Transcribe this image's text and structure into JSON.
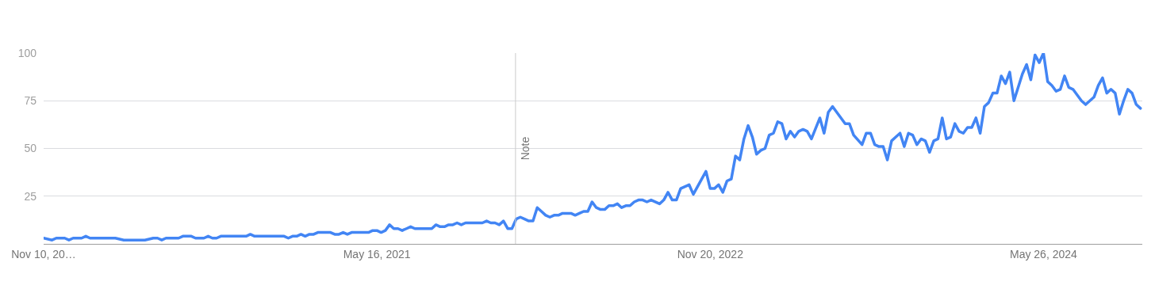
{
  "chart_data": {
    "type": "line",
    "x": [
      "2019-11-10",
      "2019-11-24",
      "2019-12-01",
      "2019-12-15",
      "2019-12-22",
      "2019-12-29",
      "2020-01-12",
      "2020-01-19",
      "2020-01-26",
      "2020-03-08",
      "2020-03-22",
      "2020-04-26",
      "2020-05-10",
      "2020-05-17",
      "2020-05-24",
      "2020-05-31",
      "2020-06-21",
      "2020-06-28",
      "2020-07-12",
      "2020-07-19",
      "2020-08-02",
      "2020-08-09",
      "2020-08-16",
      "2020-08-23",
      "2020-08-30",
      "2020-10-11",
      "2020-10-18",
      "2020-10-25",
      "2020-12-13",
      "2020-12-20",
      "2020-12-27",
      "2021-01-03",
      "2021-01-10",
      "2021-01-17",
      "2021-01-24",
      "2021-01-31",
      "2021-02-07",
      "2021-02-28",
      "2021-03-07",
      "2021-03-14",
      "2021-03-21",
      "2021-03-28",
      "2021-04-04",
      "2021-05-02",
      "2021-05-09",
      "2021-05-16",
      "2021-05-23",
      "2021-05-30",
      "2021-06-06",
      "2021-06-13",
      "2021-06-20",
      "2021-06-27",
      "2021-07-04",
      "2021-07-11",
      "2021-07-18",
      "2021-08-15",
      "2021-08-22",
      "2021-08-29",
      "2021-09-05",
      "2021-09-12",
      "2021-09-19",
      "2021-09-26",
      "2021-10-03",
      "2021-10-10",
      "2021-11-07",
      "2021-11-14",
      "2021-11-21",
      "2021-11-28",
      "2021-12-05",
      "2021-12-12",
      "2021-12-19",
      "2021-12-26",
      "2022-01-02",
      "2022-01-09",
      "2022-01-16",
      "2022-01-23",
      "2022-01-30",
      "2022-02-06",
      "2022-02-13",
      "2022-02-20",
      "2022-02-27",
      "2022-03-06",
      "2022-03-13",
      "2022-03-20",
      "2022-04-03",
      "2022-04-10",
      "2022-04-17",
      "2022-04-24",
      "2022-05-01",
      "2022-05-08",
      "2022-05-15",
      "2022-05-22",
      "2022-05-29",
      "2022-06-05",
      "2022-06-12",
      "2022-06-19",
      "2022-06-26",
      "2022-07-03",
      "2022-07-10",
      "2022-07-17",
      "2022-07-24",
      "2022-07-31",
      "2022-08-07",
      "2022-08-14",
      "2022-08-28",
      "2022-09-04",
      "2022-09-11",
      "2022-09-18",
      "2022-09-25",
      "2022-10-02",
      "2022-10-16",
      "2022-10-23",
      "2022-11-13",
      "2022-11-20",
      "2022-11-27",
      "2022-12-04",
      "2022-12-11",
      "2022-12-18",
      "2022-12-25",
      "2023-01-01",
      "2023-01-08",
      "2023-01-15",
      "2023-01-22",
      "2023-01-29",
      "2023-02-05",
      "2023-02-12",
      "2023-02-19",
      "2023-02-26",
      "2023-03-05",
      "2023-03-12",
      "2023-03-19",
      "2023-03-26",
      "2023-04-02",
      "2023-04-09",
      "2023-04-16",
      "2023-04-23",
      "2023-04-30",
      "2023-05-07",
      "2023-05-21",
      "2023-05-28",
      "2023-06-04",
      "2023-06-11",
      "2023-06-25",
      "2023-07-02",
      "2023-07-09",
      "2023-07-16",
      "2023-07-30",
      "2023-08-06",
      "2023-08-13",
      "2023-08-20",
      "2023-08-27",
      "2023-09-03",
      "2023-09-10",
      "2023-09-17",
      "2023-09-24",
      "2023-10-01",
      "2023-10-08",
      "2023-10-15",
      "2023-10-22",
      "2023-10-29",
      "2023-11-05",
      "2023-11-12",
      "2023-11-19",
      "2023-11-26",
      "2023-12-03",
      "2023-12-10",
      "2023-12-17",
      "2023-12-24",
      "2023-12-31",
      "2024-01-07",
      "2024-01-14",
      "2024-01-21",
      "2024-01-28",
      "2024-02-04",
      "2024-02-11",
      "2024-02-18",
      "2024-02-25",
      "2024-03-03",
      "2024-03-10",
      "2024-03-17",
      "2024-03-24",
      "2024-03-31",
      "2024-04-07",
      "2024-04-21",
      "2024-04-28",
      "2024-05-05",
      "2024-05-12",
      "2024-05-19",
      "2024-05-26",
      "2024-06-02",
      "2024-06-09",
      "2024-06-16",
      "2024-06-23",
      "2024-06-30",
      "2024-07-07",
      "2024-07-14",
      "2024-07-28",
      "2024-08-04",
      "2024-08-11",
      "2024-08-18",
      "2024-08-25",
      "2024-09-01",
      "2024-09-08",
      "2024-09-15",
      "2024-09-22",
      "2024-09-29",
      "2024-10-06",
      "2024-10-13",
      "2024-10-20",
      "2024-10-27",
      "2024-11-03"
    ],
    "series": [
      {
        "color": "#4285f4",
        "values": [
          3,
          2,
          3,
          3,
          2,
          3,
          3,
          4,
          3,
          3,
          2,
          2,
          3,
          3,
          2,
          3,
          3,
          4,
          4,
          3,
          3,
          4,
          3,
          3,
          4,
          4,
          5,
          4,
          4,
          3,
          4,
          4,
          5,
          4,
          5,
          5,
          6,
          6,
          5,
          5,
          6,
          5,
          6,
          6,
          7,
          7,
          6,
          7,
          10,
          8,
          8,
          7,
          8,
          9,
          8,
          8,
          10,
          9,
          9,
          10,
          10,
          11,
          10,
          11,
          11,
          12,
          11,
          11,
          10,
          12,
          8,
          8,
          13,
          14,
          13,
          12,
          12,
          19,
          17,
          15,
          14,
          15,
          15,
          16,
          16,
          15,
          16,
          17,
          17,
          22,
          19,
          18,
          18,
          20,
          20,
          21,
          19,
          20,
          20,
          22,
          23,
          23,
          22,
          23,
          21,
          23,
          27,
          23,
          23,
          29,
          31,
          26,
          38,
          29,
          29,
          31,
          27,
          33,
          34,
          46,
          44,
          55,
          62,
          56,
          47,
          49,
          50,
          57,
          58,
          64,
          63,
          55,
          59,
          56,
          59,
          60,
          59,
          55,
          66,
          58,
          69,
          72,
          66,
          63,
          63,
          57,
          52,
          58,
          58,
          52,
          51,
          51,
          44,
          54,
          56,
          58,
          51,
          58,
          57,
          52,
          55,
          54,
          48,
          54,
          55,
          66,
          55,
          56,
          63,
          59,
          58,
          61,
          61,
          66,
          58,
          72,
          74,
          79,
          79,
          88,
          84,
          90,
          75,
          89,
          94,
          86,
          99,
          95,
          100,
          85,
          83,
          80,
          81,
          88,
          82,
          81,
          75,
          73,
          75,
          77,
          83,
          87,
          79,
          81,
          79,
          68,
          75,
          81,
          79,
          73,
          71
        ]
      }
    ],
    "xlim": [
      "2019-11-10",
      "2024-11-06"
    ],
    "xticks": [
      {
        "value": "2019-11-10",
        "label": "Nov 10, 20…"
      },
      {
        "value": "2021-05-16",
        "label": "May 16, 2021"
      },
      {
        "value": "2022-11-20",
        "label": "Nov 20, 2022"
      },
      {
        "value": "2024-05-26",
        "label": "May 26, 2024"
      }
    ],
    "ylim": [
      0,
      100
    ],
    "yticks": [
      25,
      50,
      75,
      100
    ],
    "grid": "y",
    "ref_lines": [
      {
        "axis": "x",
        "value": "2022-01-01",
        "label": "Note",
        "color": "#cccccc"
      }
    ]
  }
}
